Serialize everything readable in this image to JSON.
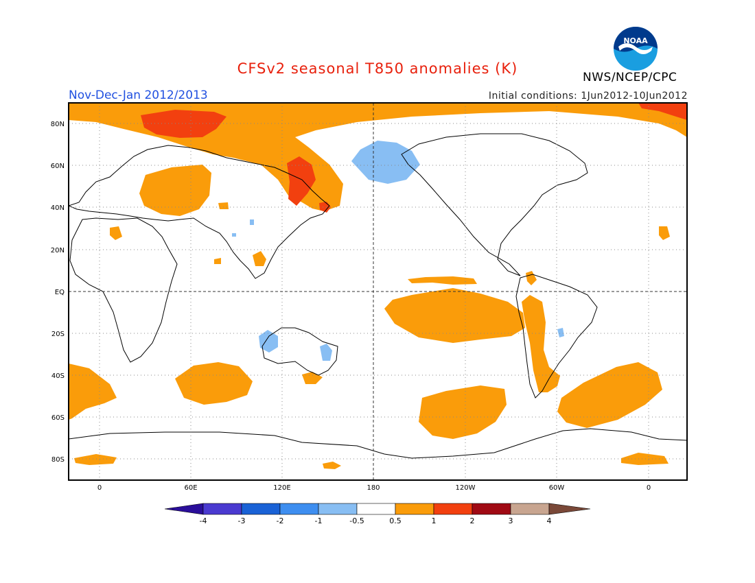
{
  "title": "CFSv2 seasonal T850 anomalies (K)",
  "period": "Nov-Dec-Jan 2012/2013",
  "initial_conditions": "Initial conditions: 1Jun2012-10Jun2012",
  "organization": "NWS/NCEP/CPC",
  "logo_text": "NOAA",
  "lat_labels": [
    "80N",
    "60N",
    "40N",
    "20N",
    "EQ",
    "20S",
    "40S",
    "60S",
    "80S"
  ],
  "lon_labels": [
    "0",
    "60E",
    "120E",
    "180",
    "120W",
    "60W",
    "0"
  ],
  "colorbar": {
    "tick_labels": [
      "-4",
      "-3",
      "-2",
      "-1",
      "-0.5",
      "0.5",
      "1",
      "2",
      "3",
      "4"
    ],
    "colors": [
      "#2a0e9a",
      "#4a3ad0",
      "#1a62d6",
      "#3e8ef0",
      "#88bef3",
      "#ffffff",
      "#fa9c0a",
      "#f2400f",
      "#a00a14",
      "#c8a590",
      "#7a4838"
    ]
  }
}
